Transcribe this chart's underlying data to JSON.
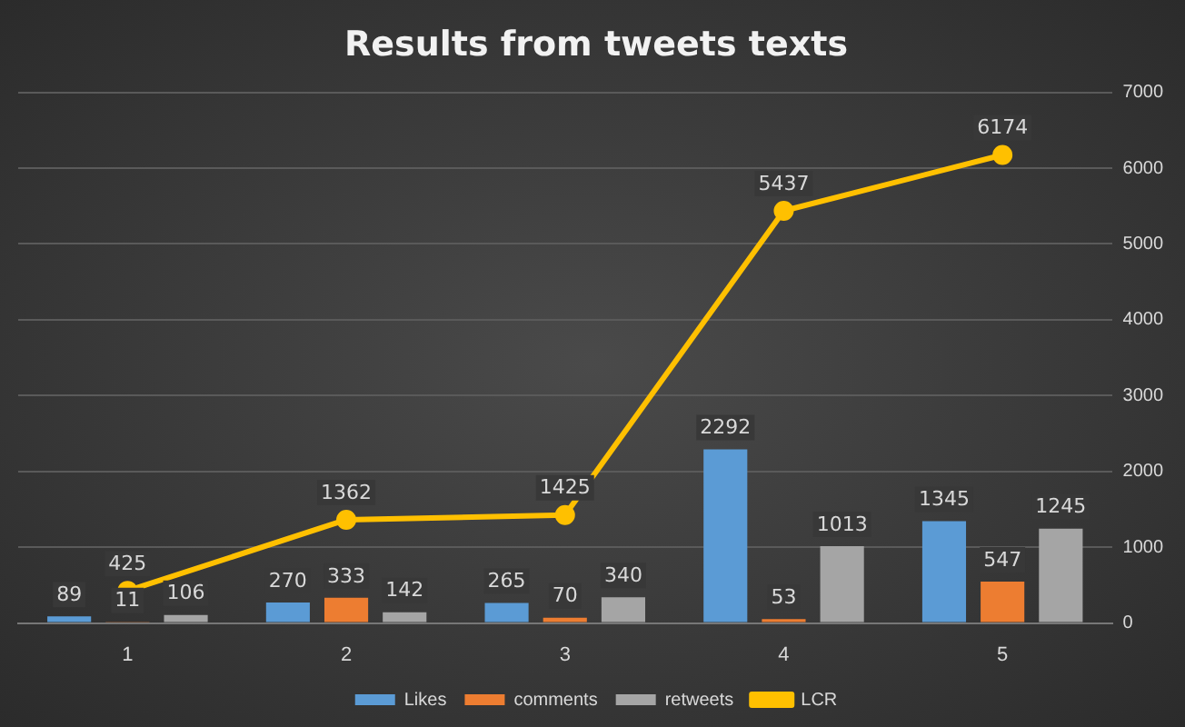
{
  "chart_data": {
    "type": "bar",
    "title": "Results from tweets texts",
    "categories": [
      "1",
      "2",
      "3",
      "4",
      "5"
    ],
    "series": [
      {
        "name": "Likes",
        "color": "#5b9bd5",
        "values": [
          89,
          270,
          265,
          2292,
          1345
        ]
      },
      {
        "name": "comments",
        "color": "#ed7d31",
        "values": [
          11,
          333,
          70,
          53,
          547
        ]
      },
      {
        "name": "retweets",
        "color": "#a5a5a5",
        "values": [
          106,
          142,
          340,
          1013,
          1245
        ]
      },
      {
        "name": "LCR",
        "type": "line",
        "color": "#ffc000",
        "values": [
          425,
          1362,
          1425,
          5437,
          6174
        ],
        "marker": "circle",
        "line_style": "solid"
      }
    ],
    "ylim": [
      0,
      7000
    ],
    "yticks": [
      0,
      1000,
      2000,
      3000,
      4000,
      5000,
      6000,
      7000
    ],
    "grid": "y",
    "legend": "bottom",
    "data_labels": true
  }
}
